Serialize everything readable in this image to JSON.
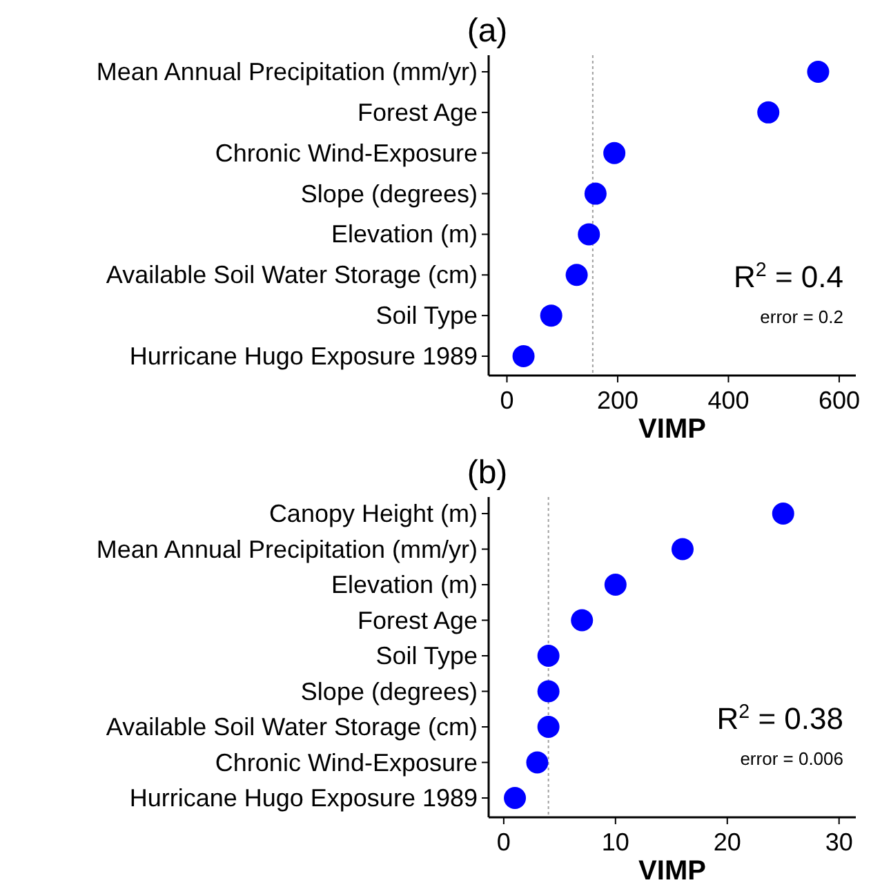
{
  "chart_data": [
    {
      "type": "scatter",
      "orientation": "horizontal",
      "title": "(a)",
      "xlabel": "VIMP",
      "categories": [
        "Mean Annual Precipitation (mm/yr)",
        "Forest Age",
        "Chronic Wind-Exposure",
        "Slope (degrees)",
        "Elevation (m)",
        "Available Soil Water Storage (cm)",
        "Soil Type",
        "Hurricane Hugo Exposure 1989"
      ],
      "values": [
        562,
        472,
        194,
        160,
        148,
        126,
        80,
        30
      ],
      "color": "#0000ff",
      "xlim": [
        -33,
        630
      ],
      "xticks": [
        0,
        200,
        400,
        600
      ],
      "grid": false,
      "marker": "circle",
      "ref_lines": [
        {
          "axis": "x",
          "value": 155,
          "color": "#a0a0a0",
          "line_style": "dotted"
        }
      ],
      "annotations": [
        "R$^{2}$ = 0.4",
        "error = 0.2"
      ]
    },
    {
      "type": "scatter",
      "orientation": "horizontal",
      "title": "(b)",
      "xlabel": "VIMP",
      "categories": [
        "Canopy Height (m)",
        "Mean Annual Precipitation (mm/yr)",
        "Elevation (m)",
        "Forest Age",
        "Soil Type",
        "Slope (degrees)",
        "Available Soil Water Storage (cm)",
        "Chronic Wind-Exposure",
        "Hurricane Hugo Exposure 1989"
      ],
      "values": [
        25,
        16,
        10,
        7,
        4,
        4,
        4,
        3,
        1
      ],
      "color": "#0000ff",
      "xlim": [
        -1.35,
        31.5
      ],
      "xticks": [
        0,
        10,
        20,
        30
      ],
      "grid": false,
      "marker": "circle",
      "ref_lines": [
        {
          "axis": "x",
          "value": 4,
          "color": "#a0a0a0",
          "line_style": "dotted"
        }
      ],
      "annotations": [
        "R$^{2}$ = 0.38",
        "error = 0.006"
      ]
    }
  ]
}
